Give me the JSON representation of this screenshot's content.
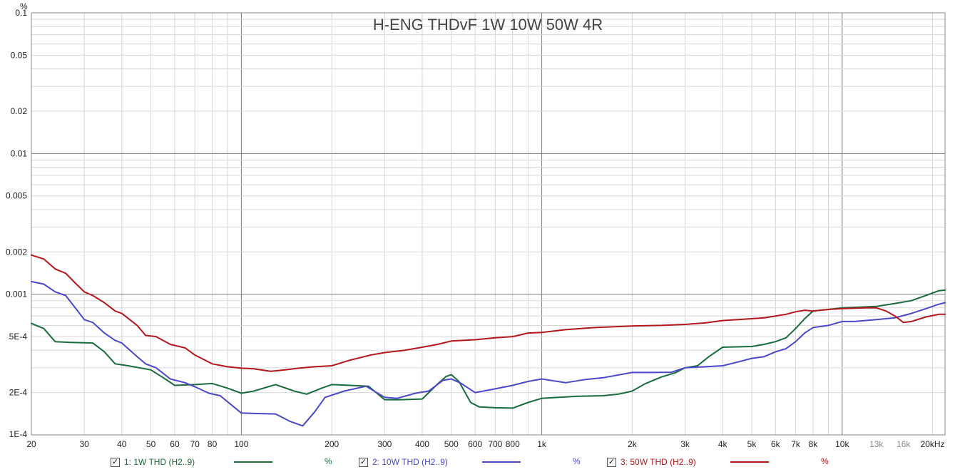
{
  "chart_data": {
    "type": "line",
    "title": "H-ENG THDvF 1W 10W 50W 4R",
    "y_unit": "%",
    "x_scale": "log",
    "y_scale": "log",
    "xlim": [
      20,
      22000
    ],
    "ylim": [
      0.0001,
      0.1
    ],
    "y_ticks": [
      {
        "v": 0.1,
        "label": "0.1"
      },
      {
        "v": 0.05,
        "label": "0.05"
      },
      {
        "v": 0.02,
        "label": "0.02"
      },
      {
        "v": 0.01,
        "label": "0.01"
      },
      {
        "v": 0.005,
        "label": "0.005"
      },
      {
        "v": 0.002,
        "label": "0.002"
      },
      {
        "v": 0.001,
        "label": "0.001"
      },
      {
        "v": 0.0005,
        "label": "5E-4"
      },
      {
        "v": 0.0002,
        "label": "2E-4"
      },
      {
        "v": 0.0001,
        "label": "1E-4"
      }
    ],
    "x_ticks": [
      {
        "v": 20,
        "label": "20"
      },
      {
        "v": 30,
        "label": "30"
      },
      {
        "v": 40,
        "label": "40"
      },
      {
        "v": 50,
        "label": "50"
      },
      {
        "v": 60,
        "label": "60"
      },
      {
        "v": 70,
        "label": "70"
      },
      {
        "v": 80,
        "label": "80"
      },
      {
        "v": 100,
        "label": "100"
      },
      {
        "v": 200,
        "label": "200"
      },
      {
        "v": 300,
        "label": "300"
      },
      {
        "v": 400,
        "label": "400"
      },
      {
        "v": 500,
        "label": "500"
      },
      {
        "v": 600,
        "label": "600"
      },
      {
        "v": 700,
        "label": "700"
      },
      {
        "v": 800,
        "label": "800"
      },
      {
        "v": 1000,
        "label": "1k"
      },
      {
        "v": 2000,
        "label": "2k"
      },
      {
        "v": 3000,
        "label": "3k"
      },
      {
        "v": 4000,
        "label": "4k"
      },
      {
        "v": 5000,
        "label": "5k"
      },
      {
        "v": 6000,
        "label": "6k"
      },
      {
        "v": 7000,
        "label": "7k"
      },
      {
        "v": 8000,
        "label": "8k"
      },
      {
        "v": 10000,
        "label": "10k"
      },
      {
        "v": 13000,
        "label": "13k",
        "muted": true
      },
      {
        "v": 16000,
        "label": "16k",
        "muted": true
      },
      {
        "v": 20000,
        "label": "20kHz"
      }
    ],
    "grid": true,
    "legend_position": "bottom",
    "series": [
      {
        "name": "1: 1W THD (H2..9)",
        "unit": "%",
        "color": "#1a6b3c",
        "points": [
          [
            20,
            0.00062
          ],
          [
            22,
            0.00057
          ],
          [
            24,
            0.00046
          ],
          [
            27,
            0.000455
          ],
          [
            32,
            0.00045
          ],
          [
            35,
            0.00039
          ],
          [
            38,
            0.00032
          ],
          [
            42,
            0.00031
          ],
          [
            50,
            0.00029
          ],
          [
            55,
            0.000255
          ],
          [
            60,
            0.000225
          ],
          [
            70,
            0.000228
          ],
          [
            80,
            0.000232
          ],
          [
            90,
            0.000215
          ],
          [
            100,
            0.000198
          ],
          [
            110,
            0.000205
          ],
          [
            130,
            0.000228
          ],
          [
            150,
            0.000205
          ],
          [
            165,
            0.000195
          ],
          [
            185,
            0.000215
          ],
          [
            200,
            0.000228
          ],
          [
            230,
            0.000225
          ],
          [
            265,
            0.000222
          ],
          [
            300,
            0.000178
          ],
          [
            340,
            0.000178
          ],
          [
            400,
            0.00018
          ],
          [
            450,
            0.00023
          ],
          [
            480,
            0.00026
          ],
          [
            500,
            0.000268
          ],
          [
            530,
            0.00024
          ],
          [
            580,
            0.00017
          ],
          [
            620,
            0.000158
          ],
          [
            700,
            0.000156
          ],
          [
            800,
            0.000155
          ],
          [
            900,
            0.00017
          ],
          [
            1000,
            0.000182
          ],
          [
            1300,
            0.000188
          ],
          [
            1600,
            0.00019
          ],
          [
            1800,
            0.000195
          ],
          [
            2000,
            0.000205
          ],
          [
            2200,
            0.00023
          ],
          [
            2500,
            0.000258
          ],
          [
            2800,
            0.000278
          ],
          [
            3000,
            0.0003
          ],
          [
            3300,
            0.00031
          ],
          [
            3600,
            0.00036
          ],
          [
            4000,
            0.00042
          ],
          [
            5000,
            0.000425
          ],
          [
            5500,
            0.00044
          ],
          [
            6000,
            0.00046
          ],
          [
            6500,
            0.00049
          ],
          [
            7000,
            0.00057
          ],
          [
            7500,
            0.00067
          ],
          [
            8000,
            0.00076
          ],
          [
            9000,
            0.00078
          ],
          [
            10000,
            0.0008
          ],
          [
            13000,
            0.00082
          ],
          [
            15000,
            0.00086
          ],
          [
            17000,
            0.0009
          ],
          [
            19000,
            0.00098
          ],
          [
            21000,
            0.00106
          ],
          [
            22000,
            0.00107
          ]
        ]
      },
      {
        "name": "2: 10W THD (H2..9)",
        "unit": "%",
        "color": "#4a48c8",
        "points": [
          [
            20,
            0.00123
          ],
          [
            22,
            0.00118
          ],
          [
            24,
            0.00104
          ],
          [
            26,
            0.00098
          ],
          [
            28,
            0.0008
          ],
          [
            30,
            0.00066
          ],
          [
            32,
            0.00063
          ],
          [
            35,
            0.00053
          ],
          [
            38,
            0.00047
          ],
          [
            40,
            0.00045
          ],
          [
            45,
            0.00036
          ],
          [
            48,
            0.00032
          ],
          [
            52,
            0.0003
          ],
          [
            58,
            0.00025
          ],
          [
            65,
            0.000235
          ],
          [
            70,
            0.00022
          ],
          [
            78,
            0.000198
          ],
          [
            85,
            0.00019
          ],
          [
            100,
            0.000143
          ],
          [
            110,
            0.000142
          ],
          [
            130,
            0.000141
          ],
          [
            145,
            0.000125
          ],
          [
            160,
            0.000116
          ],
          [
            175,
            0.000145
          ],
          [
            190,
            0.000185
          ],
          [
            220,
            0.000205
          ],
          [
            260,
            0.000222
          ],
          [
            300,
            0.000185
          ],
          [
            330,
            0.000182
          ],
          [
            380,
            0.000198
          ],
          [
            420,
            0.000205
          ],
          [
            470,
            0.000245
          ],
          [
            500,
            0.00025
          ],
          [
            540,
            0.000232
          ],
          [
            600,
            0.0002
          ],
          [
            680,
            0.00021
          ],
          [
            800,
            0.000225
          ],
          [
            900,
            0.00024
          ],
          [
            1000,
            0.00025
          ],
          [
            1200,
            0.000235
          ],
          [
            1400,
            0.000248
          ],
          [
            1600,
            0.000255
          ],
          [
            2000,
            0.000278
          ],
          [
            2300,
            0.000278
          ],
          [
            2700,
            0.000279
          ],
          [
            3000,
            0.0003
          ],
          [
            3500,
            0.000305
          ],
          [
            4000,
            0.00031
          ],
          [
            4500,
            0.00033
          ],
          [
            5000,
            0.00035
          ],
          [
            5500,
            0.00036
          ],
          [
            6000,
            0.00039
          ],
          [
            6500,
            0.00041
          ],
          [
            7000,
            0.00046
          ],
          [
            7500,
            0.00053
          ],
          [
            8000,
            0.00058
          ],
          [
            9000,
            0.0006
          ],
          [
            10000,
            0.00064
          ],
          [
            11000,
            0.00064
          ],
          [
            13000,
            0.00066
          ],
          [
            15000,
            0.00068
          ],
          [
            17000,
            0.00073
          ],
          [
            19000,
            0.00079
          ],
          [
            21000,
            0.00085
          ],
          [
            22000,
            0.00087
          ]
        ]
      },
      {
        "name": "3: 50W THD (H2..9)",
        "unit": "%",
        "color": "#b3161b",
        "points": [
          [
            20,
            0.0019
          ],
          [
            22,
            0.00178
          ],
          [
            24,
            0.00151
          ],
          [
            26,
            0.00141
          ],
          [
            28,
            0.0012
          ],
          [
            30,
            0.00104
          ],
          [
            32,
            0.00098
          ],
          [
            35,
            0.00087
          ],
          [
            38,
            0.00076
          ],
          [
            40,
            0.00073
          ],
          [
            45,
            0.0006
          ],
          [
            48,
            0.00051
          ],
          [
            52,
            0.0005
          ],
          [
            58,
            0.00044
          ],
          [
            65,
            0.000415
          ],
          [
            70,
            0.00037
          ],
          [
            80,
            0.00032
          ],
          [
            90,
            0.000305
          ],
          [
            100,
            0.000298
          ],
          [
            110,
            0.000295
          ],
          [
            125,
            0.000283
          ],
          [
            140,
            0.00029
          ],
          [
            155,
            0.000298
          ],
          [
            175,
            0.000305
          ],
          [
            200,
            0.00031
          ],
          [
            230,
            0.00034
          ],
          [
            270,
            0.00037
          ],
          [
            300,
            0.000385
          ],
          [
            350,
            0.0004
          ],
          [
            400,
            0.00042
          ],
          [
            450,
            0.00044
          ],
          [
            500,
            0.000465
          ],
          [
            600,
            0.000475
          ],
          [
            700,
            0.00049
          ],
          [
            800,
            0.0005
          ],
          [
            900,
            0.00053
          ],
          [
            1000,
            0.000535
          ],
          [
            1200,
            0.00056
          ],
          [
            1500,
            0.00058
          ],
          [
            2000,
            0.000595
          ],
          [
            2500,
            0.0006
          ],
          [
            3000,
            0.00061
          ],
          [
            3500,
            0.000625
          ],
          [
            4000,
            0.00065
          ],
          [
            4500,
            0.00066
          ],
          [
            5000,
            0.00067
          ],
          [
            5500,
            0.00068
          ],
          [
            6000,
            0.0007
          ],
          [
            6500,
            0.00072
          ],
          [
            7000,
            0.00075
          ],
          [
            7500,
            0.00077
          ],
          [
            8000,
            0.00076
          ],
          [
            9000,
            0.00078
          ],
          [
            10000,
            0.00079
          ],
          [
            12000,
            0.0008
          ],
          [
            13000,
            0.0008
          ],
          [
            14000,
            0.00076
          ],
          [
            15000,
            0.0007
          ],
          [
            16000,
            0.00063
          ],
          [
            17000,
            0.00064
          ],
          [
            19000,
            0.00069
          ],
          [
            21000,
            0.00072
          ],
          [
            22000,
            0.00072
          ]
        ]
      }
    ]
  },
  "legend": {
    "check_glyph": "✓"
  }
}
